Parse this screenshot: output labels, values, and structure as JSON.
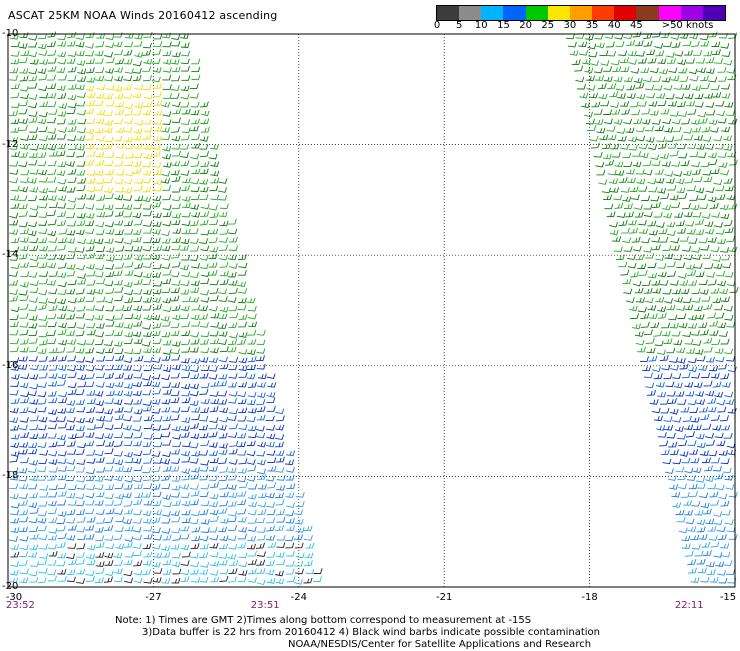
{
  "title": "ASCAT 25KM NOAA Winds 20160412 ascending",
  "colorbar": {
    "labels": [
      "0",
      "5",
      "10",
      "15",
      "20",
      "25",
      "30",
      "35",
      "40",
      "45",
      ">50 knots"
    ],
    "colors": [
      "#3c3c3c",
      "#8c8c8c",
      "#00b4ff",
      "#0064ff",
      "#00c800",
      "#ffe600",
      "#ffa000",
      "#ff3c00",
      "#e10000",
      "#8c3c1e",
      "#ff00ff",
      "#a000e6",
      "#5000b4"
    ]
  },
  "axes": {
    "lat_labels": [
      "-10",
      "-12",
      "-14",
      "-16",
      "-18",
      "-20"
    ],
    "lon_labels": [
      "-30",
      "-27",
      "-24",
      "-21",
      "-18",
      "-15"
    ],
    "lat_range": [
      -20,
      -10
    ],
    "lon_range": [
      -30,
      -15
    ],
    "grid": "dotted"
  },
  "time_labels": [
    {
      "text": "23:52",
      "lon": -30
    },
    {
      "text": "23:51",
      "lon": -24
    },
    {
      "text": "22:11",
      "lon": -16.2
    }
  ],
  "notes": [
    "Note: 1) Times are GMT 2)Times along bottom correspond to measurement at -15S",
    "3)Data buffer is 22 hrs from 20160412 4) Black wind barbs indicate possible contamination",
    "NOAA/NESDIS/Center for Satellite Applications and Research"
  ],
  "swaths": [
    {
      "name": "west-swath",
      "lon_top_right": -26.2,
      "lon_bottom_right": -23.5
    },
    {
      "name": "east-swath",
      "lon_top_left": -18.5,
      "lon_bottom_left": -15.8
    }
  ]
}
